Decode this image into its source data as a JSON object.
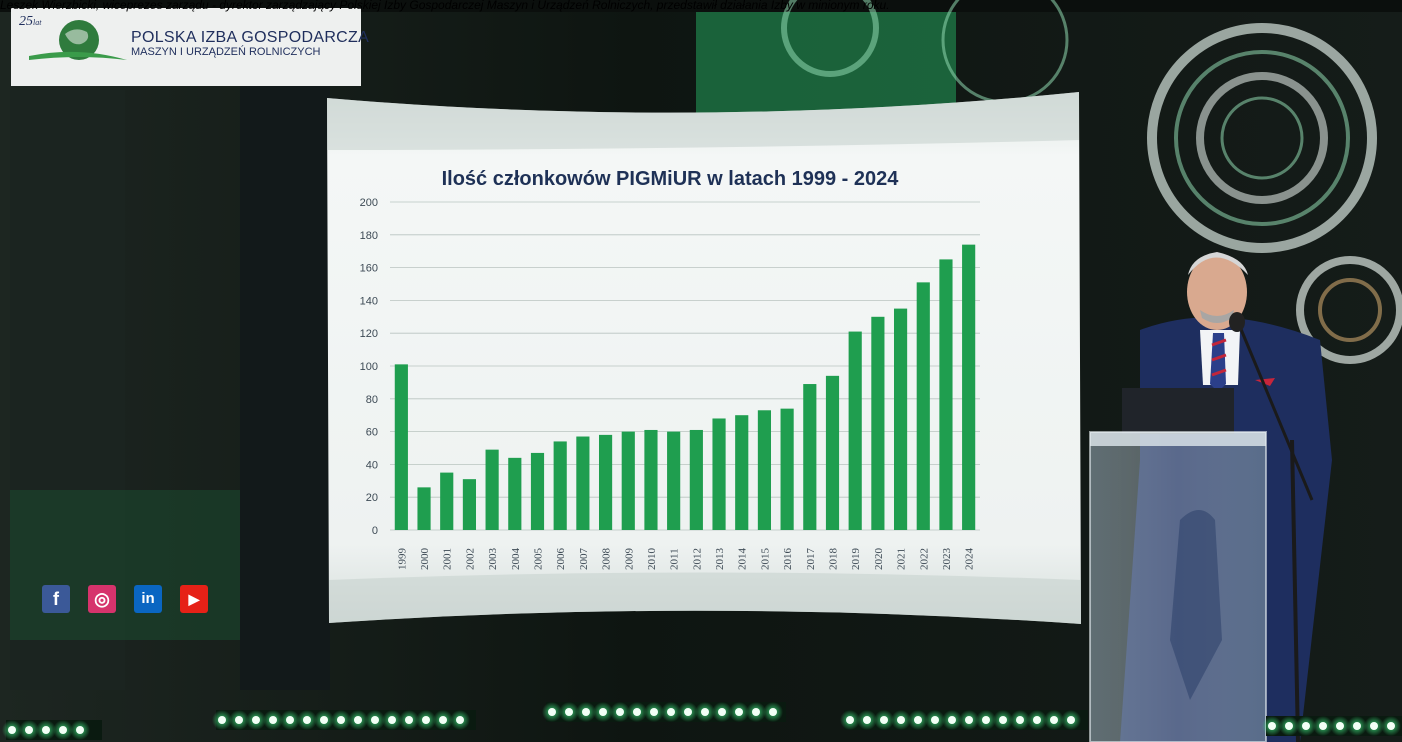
{
  "caption": "Leszek Wierzbicki, wiceprezes zarządu - dyrektor zarządzający Polskiej Izby Gospodarczej Maszyn i Urządzeń Rolniczych, przedstawił działania Izby w minionym roku.",
  "logo": {
    "years": "25",
    "years_suffix": "lat",
    "line1": "POLSKA IZBA GOSPODARCZA",
    "line2": "MASZYN I URZĄDZEŃ ROLNICZYCH"
  },
  "social": [
    {
      "icon": "facebook-icon",
      "glyph": "f",
      "color": "#3b5998"
    },
    {
      "icon": "instagram-icon",
      "glyph": "◎",
      "color": "#d6336c"
    },
    {
      "icon": "linkedin-icon",
      "glyph": "in",
      "color": "#0a66c2"
    },
    {
      "icon": "youtube-icon",
      "glyph": "▶",
      "color": "#e62117"
    }
  ],
  "colors": {
    "bar": "#1f9e4f",
    "screen": "#eef2f1"
  },
  "chart_data": {
    "type": "bar",
    "title": "Ilość członkowów PIGMiUR w latach 1999 - 2024",
    "xlabel": "",
    "ylabel": "",
    "ylim": [
      0,
      200
    ],
    "yticks": [
      0,
      20,
      40,
      60,
      80,
      100,
      120,
      140,
      160,
      180,
      200
    ],
    "grid": true,
    "categories": [
      "1999",
      "2000",
      "2001",
      "2002",
      "2003",
      "2004",
      "2005",
      "2006",
      "2007",
      "2008",
      "2009",
      "2010",
      "2011",
      "2012",
      "2013",
      "2014",
      "2015",
      "2016",
      "2017",
      "2018",
      "2019",
      "2020",
      "2021",
      "2022",
      "2023",
      "2024"
    ],
    "values": [
      101,
      26,
      35,
      31,
      49,
      44,
      47,
      54,
      57,
      58,
      60,
      61,
      60,
      61,
      68,
      70,
      73,
      74,
      89,
      94,
      121,
      130,
      135,
      151,
      165,
      174
    ]
  }
}
